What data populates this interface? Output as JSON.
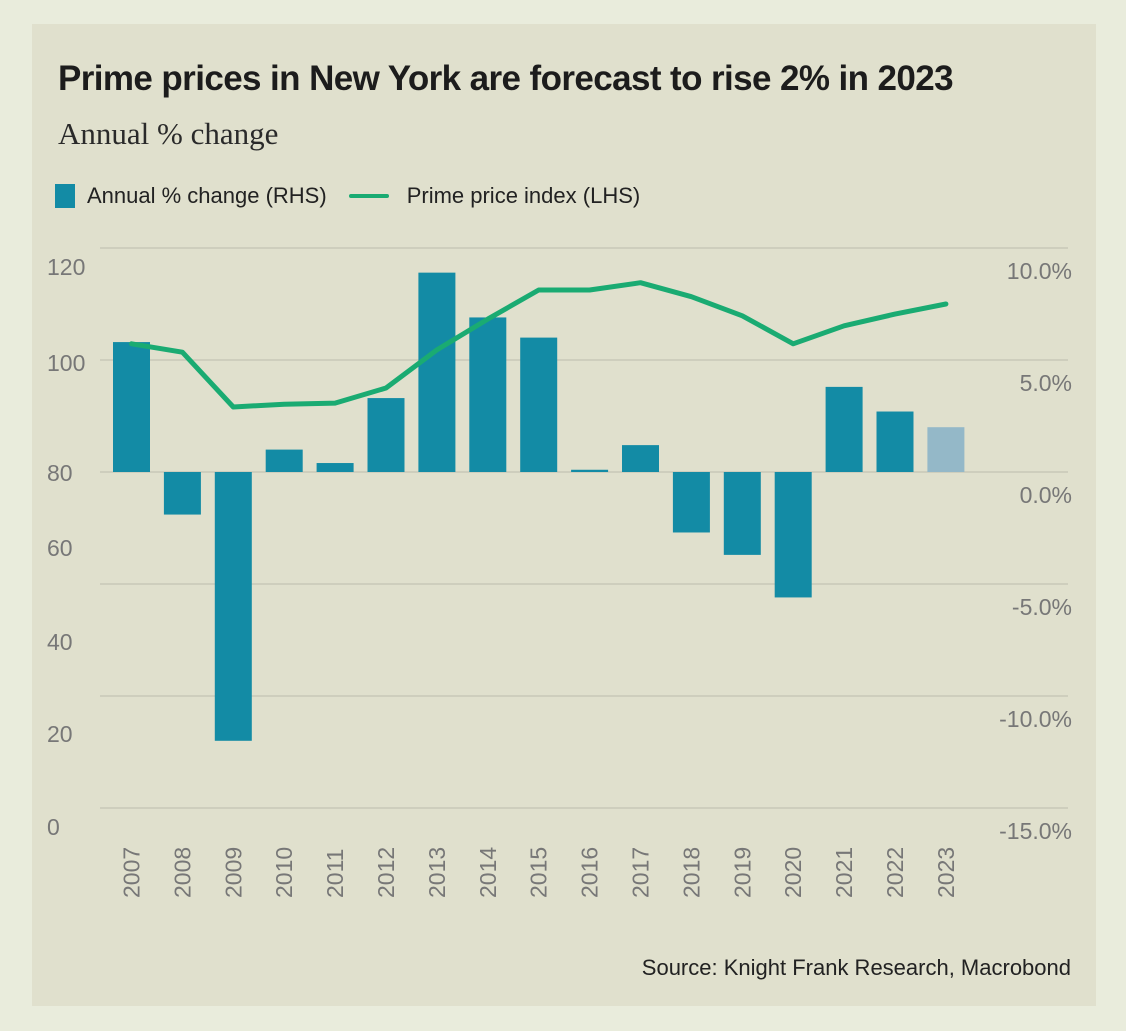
{
  "chart_data": {
    "type": "bar",
    "title": "Prime prices in New York are forecast to rise 2% in 2023",
    "subtitle": "Annual % change",
    "source": "Source: Knight Frank Research, Macrobond",
    "categories": [
      "2007",
      "2008",
      "2009",
      "2010",
      "2011",
      "2012",
      "2013",
      "2014",
      "2015",
      "2016",
      "2017",
      "2018",
      "2019",
      "2020",
      "2021",
      "2022",
      "2023"
    ],
    "series": [
      {
        "name": "Annual % change (RHS)",
        "type": "bar",
        "axis": "right",
        "color": "#138ba5",
        "forecast_color": "#94b8c8",
        "forecast_categories": [
          "2023"
        ],
        "values": [
          5.8,
          -1.9,
          -12.0,
          1.0,
          0.4,
          3.3,
          8.9,
          6.9,
          6.0,
          0.1,
          1.2,
          -2.7,
          -3.7,
          -5.6,
          3.8,
          2.7,
          2.0
        ]
      },
      {
        "name": "Prime price index (LHS)",
        "type": "line",
        "axis": "left",
        "color": "#1aab72",
        "values": [
          102.9,
          101.4,
          91.6,
          92.1,
          92.3,
          95.0,
          101.8,
          107.3,
          112.5,
          112.5,
          113.8,
          111.3,
          107.9,
          102.9,
          106.1,
          108.2,
          110.0
        ]
      }
    ],
    "left_axis": {
      "ticks": [
        "120",
        "100",
        "80",
        "60",
        "40",
        "20",
        "0"
      ],
      "ylim": [
        0,
        120
      ]
    },
    "right_axis": {
      "ticks": [
        "10.0%",
        "5.0%",
        "0.0%",
        "-5.0%",
        "-10.0%",
        "-15.0%"
      ],
      "ylim": [
        -15,
        10
      ]
    },
    "grid": true,
    "legend_position": "top-left"
  },
  "legend": {
    "bar_label": "Annual % change (RHS)",
    "line_label": "Prime price index (LHS)"
  },
  "header": {
    "title_main": "Prime prices in New York are forecast to rise 2% in 2023",
    "title_sub": "Annual % change"
  }
}
